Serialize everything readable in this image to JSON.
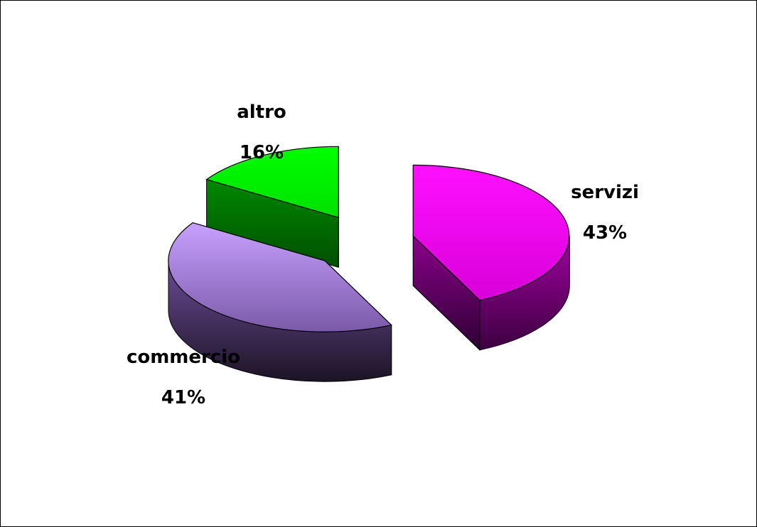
{
  "chart_data": {
    "type": "pie",
    "style": "3d-exploded",
    "slices": [
      {
        "label": "servizi",
        "value": 43,
        "display": "43%",
        "color": "#ff00ff"
      },
      {
        "label": "commercio",
        "value": 41,
        "display": "41%",
        "color": "#b48ae6"
      },
      {
        "label": "altro",
        "value": 16,
        "display": "16%",
        "color": "#00ff00"
      }
    ]
  }
}
